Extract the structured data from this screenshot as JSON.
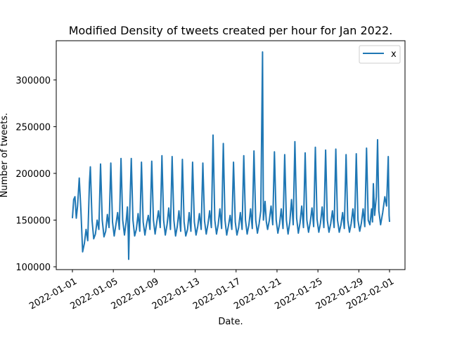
{
  "chart_data": {
    "type": "line",
    "title": "Modified Density of tweets created per hour for Jan 2022.",
    "xlabel": "Date.",
    "ylabel": "Number of tweets.",
    "x_range": [
      "2022-01-01",
      "2022-02-01"
    ],
    "ylim": [
      97000,
      342000
    ],
    "x_ticks": [
      "2022-01-01",
      "2022-01-05",
      "2022-01-09",
      "2022-01-13",
      "2022-01-17",
      "2022-01-21",
      "2022-01-25",
      "2022-01-29",
      "2022-02-01"
    ],
    "y_ticks": [
      100000,
      150000,
      200000,
      250000,
      300000
    ],
    "grid": false,
    "legend_position": "top-right",
    "series": [
      {
        "name": "x",
        "color": "#1f77b4",
        "points": [
          [
            "2022-01-01 00:00",
            152000
          ],
          [
            "2022-01-01 03:00",
            172000
          ],
          [
            "2022-01-01 06:00",
            175000
          ],
          [
            "2022-01-01 09:00",
            152000
          ],
          [
            "2022-01-01 12:00",
            165000
          ],
          [
            "2022-01-01 16:00",
            195000
          ],
          [
            "2022-01-01 20:00",
            160000
          ],
          [
            "2022-01-02 00:00",
            116000
          ],
          [
            "2022-01-02 04:00",
            125000
          ],
          [
            "2022-01-02 08:00",
            140000
          ],
          [
            "2022-01-02 12:00",
            128000
          ],
          [
            "2022-01-02 16:00",
            190000
          ],
          [
            "2022-01-02 18:00",
            207000
          ],
          [
            "2022-01-02 22:00",
            150000
          ],
          [
            "2022-01-03 02:00",
            130000
          ],
          [
            "2022-01-03 06:00",
            135000
          ],
          [
            "2022-01-03 10:00",
            150000
          ],
          [
            "2022-01-03 14:00",
            140000
          ],
          [
            "2022-01-03 18:00",
            210000
          ],
          [
            "2022-01-03 22:00",
            150000
          ],
          [
            "2022-01-04 02:00",
            132000
          ],
          [
            "2022-01-04 06:00",
            138000
          ],
          [
            "2022-01-04 10:00",
            156000
          ],
          [
            "2022-01-04 14:00",
            142000
          ],
          [
            "2022-01-04 18:00",
            211000
          ],
          [
            "2022-01-04 22:00",
            148000
          ],
          [
            "2022-01-05 02:00",
            133000
          ],
          [
            "2022-01-05 06:00",
            145000
          ],
          [
            "2022-01-05 10:00",
            158000
          ],
          [
            "2022-01-05 14:00",
            140000
          ],
          [
            "2022-01-05 18:00",
            216000
          ],
          [
            "2022-01-05 22:00",
            150000
          ],
          [
            "2022-01-06 02:00",
            134000
          ],
          [
            "2022-01-06 06:00",
            148000
          ],
          [
            "2022-01-06 09:00",
            164000
          ],
          [
            "2022-01-06 11:00",
            135000
          ],
          [
            "2022-01-06 12:00",
            108000
          ],
          [
            "2022-01-06 14:00",
            150000
          ],
          [
            "2022-01-06 18:00",
            216000
          ],
          [
            "2022-01-06 22:00",
            150000
          ],
          [
            "2022-01-07 02:00",
            133000
          ],
          [
            "2022-01-07 06:00",
            140000
          ],
          [
            "2022-01-07 10:00",
            157000
          ],
          [
            "2022-01-07 14:00",
            138000
          ],
          [
            "2022-01-07 18:00",
            212000
          ],
          [
            "2022-01-07 22:00",
            148000
          ],
          [
            "2022-01-08 02:00",
            134000
          ],
          [
            "2022-01-08 06:00",
            146000
          ],
          [
            "2022-01-08 10:00",
            155000
          ],
          [
            "2022-01-08 14:00",
            140000
          ],
          [
            "2022-01-08 18:00",
            213000
          ],
          [
            "2022-01-08 22:00",
            150000
          ],
          [
            "2022-01-09 02:00",
            135000
          ],
          [
            "2022-01-09 06:00",
            148000
          ],
          [
            "2022-01-09 10:00",
            160000
          ],
          [
            "2022-01-09 14:00",
            142000
          ],
          [
            "2022-01-09 18:00",
            219000
          ],
          [
            "2022-01-09 22:00",
            150000
          ],
          [
            "2022-01-10 02:00",
            134000
          ],
          [
            "2022-01-10 06:00",
            145000
          ],
          [
            "2022-01-10 10:00",
            163000
          ],
          [
            "2022-01-10 14:00",
            140000
          ],
          [
            "2022-01-10 18:00",
            218000
          ],
          [
            "2022-01-10 22:00",
            150000
          ],
          [
            "2022-01-11 02:00",
            133000
          ],
          [
            "2022-01-11 06:00",
            143000
          ],
          [
            "2022-01-11 10:00",
            160000
          ],
          [
            "2022-01-11 14:00",
            138000
          ],
          [
            "2022-01-11 18:00",
            215000
          ],
          [
            "2022-01-11 22:00",
            148000
          ],
          [
            "2022-01-12 02:00",
            133000
          ],
          [
            "2022-01-12 06:00",
            140000
          ],
          [
            "2022-01-12 10:00",
            158000
          ],
          [
            "2022-01-12 14:00",
            138000
          ],
          [
            "2022-01-12 18:00",
            212000
          ],
          [
            "2022-01-12 22:00",
            148000
          ],
          [
            "2022-01-13 02:00",
            134000
          ],
          [
            "2022-01-13 06:00",
            143000
          ],
          [
            "2022-01-13 10:00",
            157000
          ],
          [
            "2022-01-13 14:00",
            140000
          ],
          [
            "2022-01-13 18:00",
            211000
          ],
          [
            "2022-01-13 22:00",
            149000
          ],
          [
            "2022-01-14 02:00",
            135000
          ],
          [
            "2022-01-14 06:00",
            146000
          ],
          [
            "2022-01-14 10:00",
            160000
          ],
          [
            "2022-01-14 14:00",
            142000
          ],
          [
            "2022-01-14 18:00",
            241000
          ],
          [
            "2022-01-14 22:00",
            150000
          ],
          [
            "2022-01-15 02:00",
            135000
          ],
          [
            "2022-01-15 06:00",
            145000
          ],
          [
            "2022-01-15 10:00",
            162000
          ],
          [
            "2022-01-15 14:00",
            141000
          ],
          [
            "2022-01-15 18:00",
            232000
          ],
          [
            "2022-01-15 22:00",
            150000
          ],
          [
            "2022-01-16 02:00",
            134000
          ],
          [
            "2022-01-16 06:00",
            144000
          ],
          [
            "2022-01-16 10:00",
            155000
          ],
          [
            "2022-01-16 14:00",
            140000
          ],
          [
            "2022-01-16 18:00",
            212000
          ],
          [
            "2022-01-16 22:00",
            148000
          ],
          [
            "2022-01-17 02:00",
            134000
          ],
          [
            "2022-01-17 06:00",
            142000
          ],
          [
            "2022-01-17 10:00",
            158000
          ],
          [
            "2022-01-17 14:00",
            140000
          ],
          [
            "2022-01-17 18:00",
            219000
          ],
          [
            "2022-01-17 22:00",
            150000
          ],
          [
            "2022-01-18 02:00",
            135000
          ],
          [
            "2022-01-18 06:00",
            145000
          ],
          [
            "2022-01-18 10:00",
            162000
          ],
          [
            "2022-01-18 14:00",
            141000
          ],
          [
            "2022-01-18 18:00",
            224000
          ],
          [
            "2022-01-18 22:00",
            150000
          ],
          [
            "2022-01-19 02:00",
            136000
          ],
          [
            "2022-01-19 06:00",
            146000
          ],
          [
            "2022-01-19 10:00",
            160000
          ],
          [
            "2022-01-19 14:00",
            330000
          ],
          [
            "2022-01-19 16:00",
            150000
          ],
          [
            "2022-01-19 20:00",
            170000
          ],
          [
            "2022-01-19 23:00",
            148000
          ],
          [
            "2022-01-20 02:00",
            140000
          ],
          [
            "2022-01-20 06:00",
            150000
          ],
          [
            "2022-01-20 10:00",
            165000
          ],
          [
            "2022-01-20 14:00",
            145000
          ],
          [
            "2022-01-20 18:00",
            223000
          ],
          [
            "2022-01-20 22:00",
            150000
          ],
          [
            "2022-01-21 02:00",
            136000
          ],
          [
            "2022-01-21 06:00",
            146000
          ],
          [
            "2022-01-21 10:00",
            162000
          ],
          [
            "2022-01-21 14:00",
            141000
          ],
          [
            "2022-01-21 18:00",
            220000
          ],
          [
            "2022-01-21 22:00",
            150000
          ],
          [
            "2022-01-22 02:00",
            135000
          ],
          [
            "2022-01-22 06:00",
            148000
          ],
          [
            "2022-01-22 10:00",
            172000
          ],
          [
            "2022-01-22 14:00",
            145000
          ],
          [
            "2022-01-22 18:00",
            234000
          ],
          [
            "2022-01-22 22:00",
            152000
          ],
          [
            "2022-01-23 02:00",
            136000
          ],
          [
            "2022-01-23 06:00",
            147000
          ],
          [
            "2022-01-23 10:00",
            165000
          ],
          [
            "2022-01-23 14:00",
            142000
          ],
          [
            "2022-01-23 18:00",
            222000
          ],
          [
            "2022-01-23 22:00",
            150000
          ],
          [
            "2022-01-24 02:00",
            137000
          ],
          [
            "2022-01-24 06:00",
            148000
          ],
          [
            "2022-01-24 10:00",
            163000
          ],
          [
            "2022-01-24 14:00",
            143000
          ],
          [
            "2022-01-24 18:00",
            228000
          ],
          [
            "2022-01-24 22:00",
            151000
          ],
          [
            "2022-01-25 02:00",
            137000
          ],
          [
            "2022-01-25 06:00",
            147000
          ],
          [
            "2022-01-25 10:00",
            164000
          ],
          [
            "2022-01-25 14:00",
            142000
          ],
          [
            "2022-01-25 18:00",
            225000
          ],
          [
            "2022-01-25 22:00",
            150000
          ],
          [
            "2022-01-26 02:00",
            137000
          ],
          [
            "2022-01-26 06:00",
            146000
          ],
          [
            "2022-01-26 10:00",
            160000
          ],
          [
            "2022-01-26 14:00",
            142000
          ],
          [
            "2022-01-26 18:00",
            226000
          ],
          [
            "2022-01-26 22:00",
            150000
          ],
          [
            "2022-01-27 02:00",
            137000
          ],
          [
            "2022-01-27 06:00",
            145000
          ],
          [
            "2022-01-27 10:00",
            158000
          ],
          [
            "2022-01-27 14:00",
            141000
          ],
          [
            "2022-01-27 18:00",
            220000
          ],
          [
            "2022-01-27 22:00",
            150000
          ],
          [
            "2022-01-28 02:00",
            137000
          ],
          [
            "2022-01-28 06:00",
            146000
          ],
          [
            "2022-01-28 10:00",
            162000
          ],
          [
            "2022-01-28 14:00",
            142000
          ],
          [
            "2022-01-28 18:00",
            221000
          ],
          [
            "2022-01-28 22:00",
            150000
          ],
          [
            "2022-01-29 02:00",
            138000
          ],
          [
            "2022-01-29 06:00",
            147000
          ],
          [
            "2022-01-29 10:00",
            162000
          ],
          [
            "2022-01-29 14:00",
            143000
          ],
          [
            "2022-01-29 18:00",
            227000
          ],
          [
            "2022-01-29 22:00",
            150000
          ],
          [
            "2022-01-30 02:00",
            145000
          ],
          [
            "2022-01-30 06:00",
            162000
          ],
          [
            "2022-01-30 08:00",
            148000
          ],
          [
            "2022-01-30 10:00",
            189000
          ],
          [
            "2022-01-30 13:00",
            155000
          ],
          [
            "2022-01-30 17:00",
            175000
          ],
          [
            "2022-01-30 20:00",
            236000
          ],
          [
            "2022-01-30 23:00",
            160000
          ],
          [
            "2022-01-31 03:00",
            145000
          ],
          [
            "2022-01-31 08:00",
            158000
          ],
          [
            "2022-01-31 13:00",
            175000
          ],
          [
            "2022-01-31 17:00",
            165000
          ],
          [
            "2022-01-31 21:00",
            218000
          ],
          [
            "2022-01-31 23:00",
            155000
          ],
          [
            "2022-02-01 00:00",
            148000
          ]
        ]
      }
    ]
  }
}
